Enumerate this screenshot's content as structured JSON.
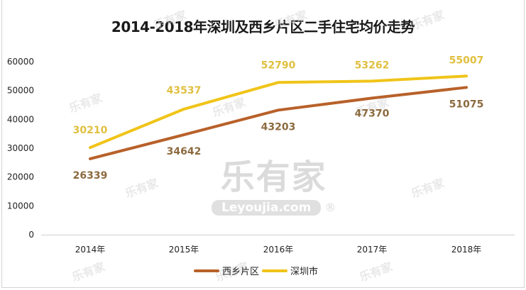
{
  "chart_data": {
    "type": "line",
    "title": "2014-2018年深圳及西乡片区二手住宅均价走势",
    "categories": [
      "2014年",
      "2015年",
      "2016年",
      "2017年",
      "2018年"
    ],
    "series": [
      {
        "name": "西乡片区",
        "color": "#b8612a",
        "values": [
          26339,
          34642,
          43203,
          47370,
          51075
        ],
        "label_color": "#8c6a3e"
      },
      {
        "name": "深圳市",
        "color": "#f0c419",
        "values": [
          30210,
          43537,
          52790,
          53262,
          55007
        ],
        "label_color": "#e0c040"
      }
    ],
    "xlabel": "",
    "ylabel": "",
    "ylim": [
      0,
      60000
    ],
    "yticks": [
      "0",
      "10000",
      "20000",
      "30000",
      "40000",
      "50000",
      "60000"
    ],
    "grid": false,
    "legend_position": "bottom",
    "data_labels": {
      "西乡片区": [
        "26339",
        "34642",
        "43203",
        "47370",
        "51075"
      ],
      "深圳市": [
        "30210",
        "43537",
        "52790",
        "53262",
        "55007"
      ]
    }
  },
  "watermark": {
    "brand": "乐有家",
    "site": "Leyoujia.com",
    "registered": "®"
  }
}
